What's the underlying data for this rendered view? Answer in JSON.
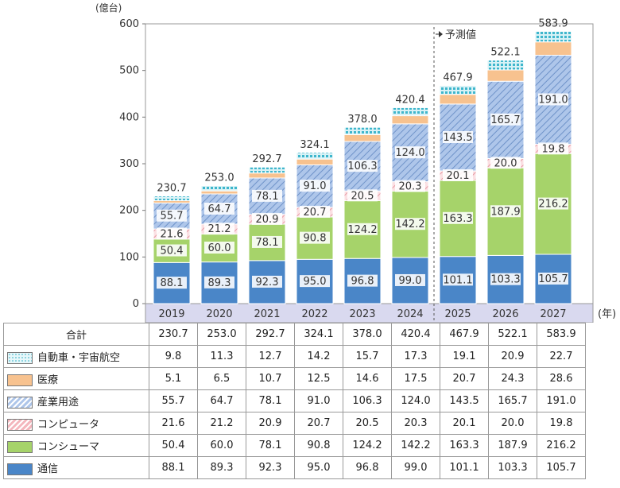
{
  "chart_data": {
    "type": "bar",
    "stacked": true,
    "y_unit_label": "(億台)",
    "x_unit_label": "(年)",
    "ylim": [
      0,
      600
    ],
    "yticks": [
      0,
      100,
      200,
      300,
      400,
      500,
      600
    ],
    "categories": [
      "2019",
      "2020",
      "2021",
      "2022",
      "2023",
      "2024",
      "2025",
      "2026",
      "2027"
    ],
    "forecast_label": "予測値",
    "forecast_start_index": 6,
    "total_row_label": "合計",
    "totals": [
      "230.7",
      "253.0",
      "292.7",
      "324.1",
      "378.0",
      "420.4",
      "467.9",
      "522.1",
      "583.9"
    ],
    "series": [
      {
        "name": "通信",
        "color": "#4a86c8",
        "pattern": "solid",
        "values": [
          88.1,
          89.3,
          92.3,
          95.0,
          96.8,
          99.0,
          101.1,
          103.3,
          105.7
        ],
        "shown_labels": [
          "88.1",
          "89.3",
          "92.3",
          "95.0",
          "96.8",
          "99.0",
          "101.1",
          "103.3",
          "105.7"
        ]
      },
      {
        "name": "コンシューマ",
        "color": "#a6d36a",
        "pattern": "solid",
        "values": [
          50.4,
          60.0,
          78.1,
          90.8,
          124.2,
          142.2,
          163.3,
          187.9,
          216.2
        ],
        "shown_labels": [
          "50.4",
          "60.0",
          "78.1",
          "90.8",
          "124.2",
          "142.2",
          "163.3",
          "187.9",
          "216.2"
        ]
      },
      {
        "name": "コンピュータ",
        "color": "#f4b6bd",
        "pattern": "hatch",
        "values": [
          21.6,
          21.2,
          20.9,
          20.7,
          20.5,
          20.3,
          20.1,
          20.0,
          19.8
        ],
        "shown_labels": [
          "21.6",
          "21.2",
          "20.9",
          "20.7",
          "20.5",
          "20.3",
          "20.1",
          "20.0",
          "19.8"
        ]
      },
      {
        "name": "産業用途",
        "color": "#aec6ea",
        "pattern": "hatch",
        "values": [
          55.7,
          64.7,
          78.1,
          91.0,
          106.3,
          124.0,
          143.5,
          165.7,
          191.0
        ],
        "shown_labels": [
          "55.7",
          "64.7",
          "78.1",
          "91.0",
          "106.3",
          "124.0",
          "143.5",
          "165.7",
          "191.0"
        ]
      },
      {
        "name": "医療",
        "color": "#f7c28f",
        "pattern": "solid",
        "values": [
          5.1,
          6.5,
          10.7,
          12.5,
          14.6,
          17.5,
          20.7,
          24.3,
          28.6
        ],
        "shown_labels": [
          "",
          "",
          "",
          "",
          "",
          "",
          "",
          "",
          ""
        ]
      },
      {
        "name": "自動車・宇宙航空",
        "color": "#8fd4e0",
        "pattern": "dots",
        "values": [
          9.8,
          11.3,
          12.7,
          14.2,
          15.7,
          17.3,
          19.1,
          20.9,
          22.7
        ],
        "shown_labels": [
          "",
          "",
          "",
          "",
          "",
          "",
          "",
          "",
          ""
        ]
      }
    ],
    "table_rows": [
      {
        "label": "自動車・宇宙航空",
        "series_index": 5,
        "values": [
          "9.8",
          "11.3",
          "12.7",
          "14.2",
          "15.7",
          "17.3",
          "19.1",
          "20.9",
          "22.7"
        ]
      },
      {
        "label": "医療",
        "series_index": 4,
        "values": [
          "5.1",
          "6.5",
          "10.7",
          "12.5",
          "14.6",
          "17.5",
          "20.7",
          "24.3",
          "28.6"
        ]
      },
      {
        "label": "産業用途",
        "series_index": 3,
        "values": [
          "55.7",
          "64.7",
          "78.1",
          "91.0",
          "106.3",
          "124.0",
          "143.5",
          "165.7",
          "191.0"
        ]
      },
      {
        "label": "コンピュータ",
        "series_index": 2,
        "values": [
          "21.6",
          "21.2",
          "20.9",
          "20.7",
          "20.5",
          "20.3",
          "20.1",
          "20.0",
          "19.8"
        ]
      },
      {
        "label": "コンシューマ",
        "series_index": 1,
        "values": [
          "50.4",
          "60.0",
          "78.1",
          "90.8",
          "124.2",
          "142.2",
          "163.3",
          "187.9",
          "216.2"
        ]
      },
      {
        "label": "通信",
        "series_index": 0,
        "values": [
          "88.1",
          "89.3",
          "92.3",
          "95.0",
          "96.8",
          "99.0",
          "101.1",
          "103.3",
          "105.7"
        ]
      }
    ]
  }
}
